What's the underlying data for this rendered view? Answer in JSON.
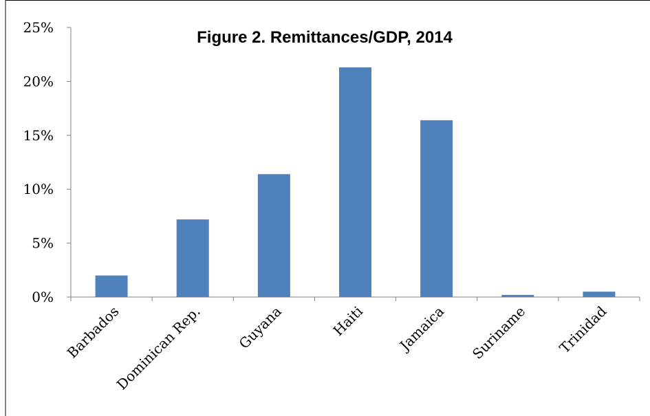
{
  "chart_data": {
    "type": "bar",
    "title": "Figure 2. Remittances/GDP, 2014",
    "xlabel": "",
    "ylabel": "",
    "categories": [
      "Barbados",
      "Dominican Rep.",
      "Guyana",
      "Haiti",
      "Jamaica",
      "Suriname",
      "Trinidad"
    ],
    "values": [
      2.0,
      7.2,
      11.4,
      21.3,
      16.4,
      0.2,
      0.5
    ],
    "unit": "%",
    "ylim": [
      0,
      25
    ],
    "yticks": [
      "0%",
      "5%",
      "10%",
      "15%",
      "20%",
      "25%"
    ],
    "grid": false,
    "legend": "none",
    "bar_color": "#4f81bd"
  }
}
